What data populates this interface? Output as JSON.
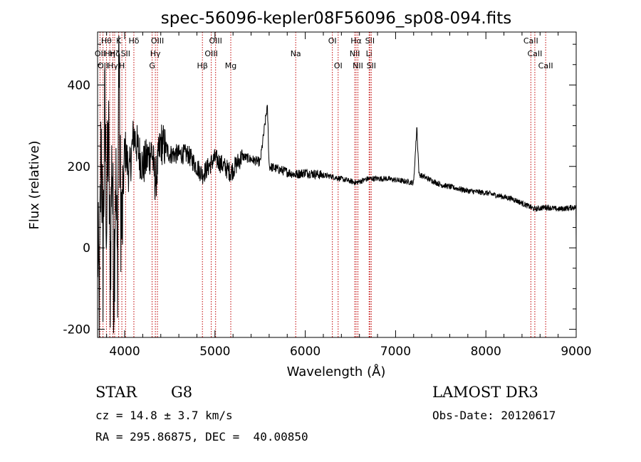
{
  "chart_data": {
    "type": "line",
    "title": "spec-56096-kepler08F56096_sp08-094.fits",
    "xlabel": "Wavelength (Å)",
    "ylabel": "Flux (relative)",
    "xlim": [
      3700,
      9000
    ],
    "ylim": [
      -220,
      530
    ],
    "xticks": [
      4000,
      5000,
      6000,
      7000,
      8000,
      9000
    ],
    "yticks": [
      -200,
      0,
      200,
      400
    ],
    "series": [
      {
        "name": "spectrum",
        "anchors": [
          [
            3700,
            20
          ],
          [
            3720,
            -150
          ],
          [
            3740,
            300
          ],
          [
            3760,
            -50
          ],
          [
            3780,
            330
          ],
          [
            3800,
            60
          ],
          [
            3820,
            290
          ],
          [
            3840,
            -80
          ],
          [
            3860,
            250
          ],
          [
            3880,
            -100
          ],
          [
            3900,
            200
          ],
          [
            3920,
            -90
          ],
          [
            3935,
            520
          ],
          [
            3950,
            150
          ],
          [
            3970,
            40
          ],
          [
            4000,
            250
          ],
          [
            4050,
            180
          ],
          [
            4100,
            280
          ],
          [
            4200,
            200
          ],
          [
            4300,
            240
          ],
          [
            4340,
            160
          ],
          [
            4400,
            260
          ],
          [
            4500,
            230
          ],
          [
            4700,
            230
          ],
          [
            4861,
            180
          ],
          [
            5000,
            220
          ],
          [
            5175,
            185
          ],
          [
            5300,
            225
          ],
          [
            5500,
            210
          ],
          [
            5580,
            350
          ],
          [
            5600,
            200
          ],
          [
            5890,
            180
          ],
          [
            6000,
            185
          ],
          [
            6300,
            175
          ],
          [
            6563,
            160
          ],
          [
            6700,
            170
          ],
          [
            6900,
            170
          ],
          [
            7200,
            160
          ],
          [
            7235,
            295
          ],
          [
            7260,
            180
          ],
          [
            7500,
            155
          ],
          [
            7800,
            140
          ],
          [
            8000,
            135
          ],
          [
            8300,
            120
          ],
          [
            8542,
            95
          ],
          [
            8662,
            100
          ],
          [
            8800,
            95
          ],
          [
            9000,
            100
          ]
        ],
        "spikes": [
          {
            "x": 3935,
            "y": 520
          },
          {
            "x": 5580,
            "y": 350
          },
          {
            "x": 7235,
            "y": 295
          }
        ]
      }
    ],
    "reference_lines": [
      {
        "x": 3727,
        "label": "OII",
        "row": 2
      },
      {
        "x": 3760,
        "label": "OII",
        "row": 3
      },
      {
        "x": 3798,
        "label": "Hθ",
        "row": 1
      },
      {
        "x": 3835,
        "label": "Hη",
        "row": 2
      },
      {
        "x": 3870,
        "label": "Hγ",
        "row": 3
      },
      {
        "x": 3889,
        "label": "Hζ",
        "row": 2
      },
      {
        "x": 3934,
        "label": "K",
        "row": 1
      },
      {
        "x": 3969,
        "label": "H",
        "row": 3
      },
      {
        "x": 4010,
        "label": "SII",
        "row": 2
      },
      {
        "x": 4102,
        "label": "Hδ",
        "row": 1
      },
      {
        "x": 4304,
        "label": "G",
        "row": 3
      },
      {
        "x": 4340,
        "label": "Hγ",
        "row": 2
      },
      {
        "x": 4363,
        "label": "OIII",
        "row": 1
      },
      {
        "x": 4861,
        "label": "Hβ",
        "row": 3
      },
      {
        "x": 4959,
        "label": "OIII",
        "row": 2
      },
      {
        "x": 5007,
        "label": "OIII",
        "row": 1
      },
      {
        "x": 5175,
        "label": "Mg",
        "row": 3
      },
      {
        "x": 5894,
        "label": "Na",
        "row": 2
      },
      {
        "x": 6300,
        "label": "OI",
        "row": 1
      },
      {
        "x": 6364,
        "label": "OI",
        "row": 3
      },
      {
        "x": 6548,
        "label": "NII",
        "row": 2
      },
      {
        "x": 6563,
        "label": "Hα",
        "row": 1
      },
      {
        "x": 6583,
        "label": "NII",
        "row": 3
      },
      {
        "x": 6707,
        "label": "Li",
        "row": 2
      },
      {
        "x": 6716,
        "label": "SII",
        "row": 1
      },
      {
        "x": 6731,
        "label": "SII",
        "row": 3
      },
      {
        "x": 8498,
        "label": "CaII",
        "row": 1
      },
      {
        "x": 8542,
        "label": "CaII",
        "row": 2
      },
      {
        "x": 8662,
        "label": "CaII",
        "row": 3
      }
    ]
  },
  "info": {
    "class": "STAR",
    "subclass": "G8",
    "survey": "LAMOST DR3",
    "cz": "cz = 14.8 ± 3.7 km/s",
    "obs_date": "Obs-Date: 20120617",
    "coords": "RA = 295.86875, DEC =  40.00850"
  }
}
